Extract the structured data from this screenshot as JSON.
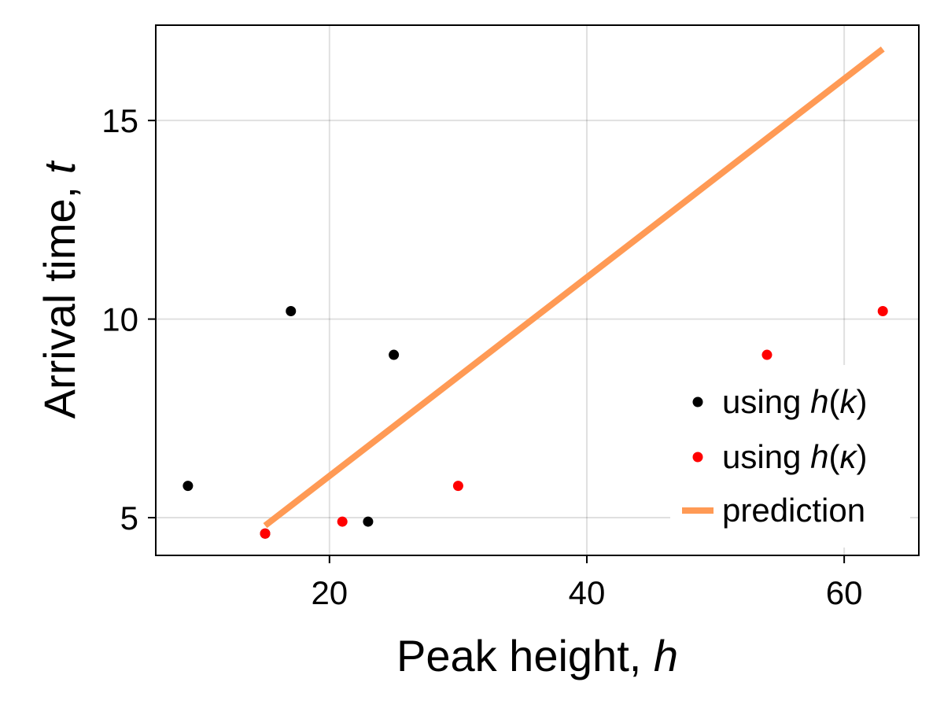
{
  "chart_data": {
    "type": "scatter",
    "xlabel": {
      "text": "Peak height, ",
      "var": "h"
    },
    "ylabel": {
      "text": "Arrival time, ",
      "var": "t"
    },
    "xlim": [
      6.5,
      65.8
    ],
    "ylim": [
      4.05,
      17.4
    ],
    "xticks": [
      20,
      40,
      60
    ],
    "yticks": [
      5,
      10,
      15
    ],
    "grid": true,
    "legend_position": "bottom-right",
    "series": [
      {
        "name": "using h(k)",
        "legend": {
          "prefix": "using ",
          "fn": "h",
          "open": "(",
          "arg": "k",
          "close": ")"
        },
        "kind": "scatter",
        "color": "#000000",
        "points": [
          [
            9,
            5.8
          ],
          [
            17,
            10.2
          ],
          [
            23,
            4.9
          ],
          [
            25,
            9.1
          ],
          [
            15,
            4.6
          ]
        ]
      },
      {
        "name": "using h(κ)",
        "legend": {
          "prefix": "using ",
          "fn": "h",
          "open": "(",
          "arg": "κ",
          "close": ")"
        },
        "kind": "scatter",
        "color": "#ff0000",
        "points": [
          [
            15,
            4.6
          ],
          [
            21,
            4.9
          ],
          [
            30,
            5.8
          ],
          [
            54,
            9.1
          ],
          [
            63,
            10.2
          ]
        ]
      },
      {
        "name": "prediction",
        "legend": {
          "prefix": "prediction",
          "fn": "",
          "open": "",
          "arg": "",
          "close": ""
        },
        "kind": "line",
        "color": "#ff9a55",
        "points": [
          [
            15,
            4.8
          ],
          [
            63,
            16.8
          ]
        ]
      }
    ]
  }
}
